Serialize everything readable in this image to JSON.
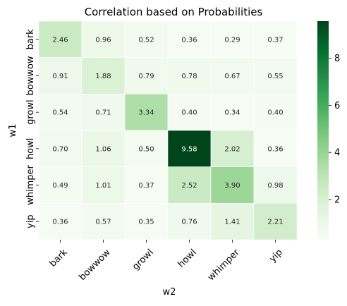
{
  "chart_data": {
    "type": "heatmap",
    "title": "Correlation based on Probabilities",
    "xlabel": "w2",
    "ylabel": "w1",
    "x_categories": [
      "bark",
      "bowwow",
      "growl",
      "howl",
      "whimper",
      "yip"
    ],
    "y_categories": [
      "bark",
      "bowwow",
      "growl",
      "howl",
      "whimper",
      "yip"
    ],
    "values": [
      [
        2.46,
        0.96,
        0.52,
        0.36,
        0.29,
        0.37
      ],
      [
        0.91,
        1.88,
        0.79,
        0.78,
        0.67,
        0.55
      ],
      [
        0.54,
        0.71,
        3.34,
        0.4,
        0.34,
        0.4
      ],
      [
        0.7,
        1.06,
        0.5,
        9.58,
        2.02,
        0.36
      ],
      [
        0.49,
        1.01,
        0.37,
        2.52,
        3.9,
        0.98
      ],
      [
        0.36,
        0.57,
        0.35,
        0.76,
        1.41,
        2.21
      ]
    ],
    "value_labels": [
      [
        "2.46",
        "0.96",
        "0.52",
        "0.36",
        "0.29",
        "0.37"
      ],
      [
        "0.91",
        "1.88",
        "0.79",
        "0.78",
        "0.67",
        "0.55"
      ],
      [
        "0.54",
        "0.71",
        "3.34",
        "0.40",
        "0.34",
        "0.40"
      ],
      [
        "0.70",
        "1.06",
        "0.50",
        "9.58",
        "2.02",
        "0.36"
      ],
      [
        "0.49",
        "1.01",
        "0.37",
        "2.52",
        "3.90",
        "0.98"
      ],
      [
        "0.36",
        "0.57",
        "0.35",
        "0.76",
        "1.41",
        "2.21"
      ]
    ],
    "colormap": "Greens",
    "colorbar": {
      "range": [
        0.29,
        9.58
      ],
      "ticks": [
        2,
        4,
        6,
        8
      ],
      "tick_labels": [
        "2",
        "4",
        "6",
        "8"
      ]
    },
    "colors": {
      "low": "#f7fcf5",
      "high": "#00441b",
      "text_dark": "#262626",
      "text_light": "#ffffff"
    }
  }
}
